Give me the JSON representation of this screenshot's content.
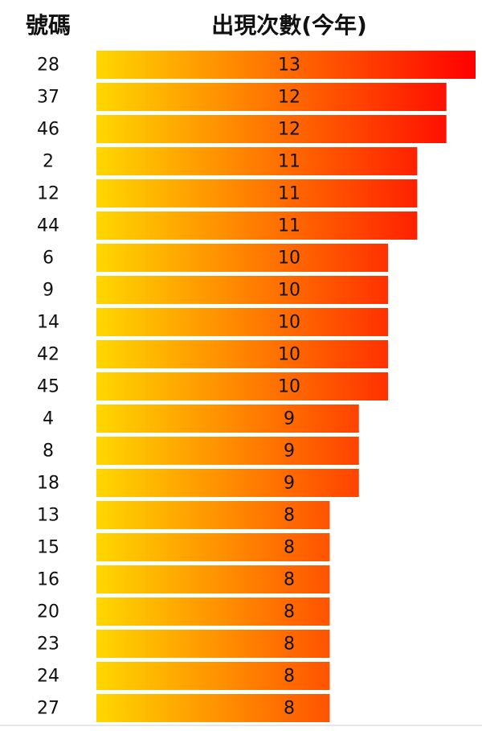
{
  "chart_data": {
    "type": "bar",
    "columns": [
      "號碼",
      "出現次數(今年)"
    ],
    "categories": [
      "28",
      "37",
      "46",
      "2",
      "12",
      "44",
      "6",
      "9",
      "14",
      "42",
      "45",
      "4",
      "8",
      "18",
      "13",
      "15",
      "16",
      "20",
      "23",
      "24",
      "27"
    ],
    "values": [
      13,
      12,
      12,
      11,
      11,
      11,
      10,
      10,
      10,
      10,
      10,
      9,
      9,
      9,
      8,
      8,
      8,
      8,
      8,
      8,
      8
    ],
    "color_start": "#ffd700",
    "color_end": "#ff0000"
  }
}
